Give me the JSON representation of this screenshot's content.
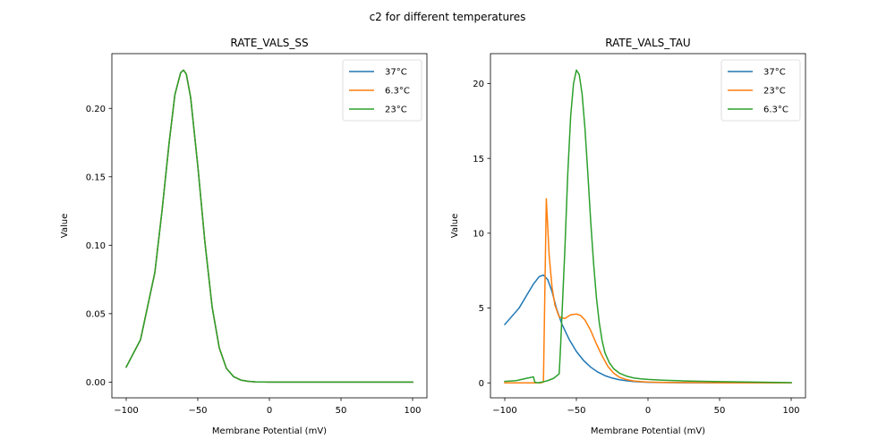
{
  "suptitle": "c2 for different temperatures",
  "chart_data": [
    {
      "type": "line",
      "title": "RATE_VALS_SS",
      "xlabel": "Membrane Potential (mV)",
      "ylabel": "Value",
      "xlim": [
        -110,
        110
      ],
      "ylim": [
        -0.0115,
        0.24
      ],
      "xticks": [
        -100,
        -50,
        0,
        50,
        100
      ],
      "xtick_labels": [
        "−100",
        "−50",
        "0",
        "50",
        "100"
      ],
      "yticks": [
        0.0,
        0.05,
        0.1,
        0.15,
        0.2
      ],
      "ytick_labels": [
        "0.00",
        "0.05",
        "0.10",
        "0.15",
        "0.20"
      ],
      "grid": false,
      "legend": {
        "placement": "top-right",
        "entries": [
          "37°C",
          "6.3°C",
          "23°C"
        ]
      },
      "series": [
        {
          "name": "37°C",
          "color": "#1f77b4",
          "x": [
            -100,
            -90,
            -80,
            -75,
            -70,
            -66,
            -62,
            -60,
            -58,
            -55,
            -50,
            -45,
            -40,
            -35,
            -30,
            -25,
            -20,
            -15,
            -10,
            -5,
            0,
            20,
            50,
            100
          ],
          "y": [
            0.011,
            0.031,
            0.08,
            0.125,
            0.175,
            0.21,
            0.226,
            0.228,
            0.225,
            0.208,
            0.158,
            0.102,
            0.055,
            0.025,
            0.01,
            0.004,
            0.0015,
            0.0006,
            0.0002,
            0.0001,
            0.0,
            0.0,
            0.0,
            0.0
          ]
        },
        {
          "name": "6.3°C",
          "color": "#ff7f0e",
          "x": [
            -100,
            -90,
            -80,
            -75,
            -70,
            -66,
            -62,
            -60,
            -58,
            -55,
            -50,
            -45,
            -40,
            -35,
            -30,
            -25,
            -20,
            -15,
            -10,
            -5,
            0,
            20,
            50,
            100
          ],
          "y": [
            0.011,
            0.031,
            0.08,
            0.125,
            0.175,
            0.21,
            0.226,
            0.228,
            0.225,
            0.208,
            0.158,
            0.102,
            0.055,
            0.025,
            0.01,
            0.004,
            0.0015,
            0.0006,
            0.0002,
            0.0001,
            0.0,
            0.0,
            0.0,
            0.0
          ]
        },
        {
          "name": "23°C",
          "color": "#2ca02c",
          "x": [
            -100,
            -90,
            -80,
            -75,
            -70,
            -66,
            -62,
            -60,
            -58,
            -55,
            -50,
            -45,
            -40,
            -35,
            -30,
            -25,
            -20,
            -15,
            -10,
            -5,
            0,
            20,
            50,
            100
          ],
          "y": [
            0.011,
            0.031,
            0.08,
            0.125,
            0.175,
            0.21,
            0.226,
            0.228,
            0.225,
            0.208,
            0.158,
            0.102,
            0.055,
            0.025,
            0.01,
            0.004,
            0.0015,
            0.0006,
            0.0002,
            0.0001,
            0.0,
            0.0,
            0.0,
            0.0
          ]
        }
      ]
    },
    {
      "type": "line",
      "title": "RATE_VALS_TAU",
      "xlabel": "Membrane Potential (mV)",
      "ylabel": "Value",
      "xlim": [
        -110,
        110
      ],
      "ylim": [
        -1.0,
        22.0
      ],
      "xticks": [
        -100,
        -50,
        0,
        50,
        100
      ],
      "xtick_labels": [
        "−100",
        "−50",
        "0",
        "50",
        "100"
      ],
      "yticks": [
        0,
        5,
        10,
        15,
        20
      ],
      "ytick_labels": [
        "0",
        "5",
        "10",
        "15",
        "20"
      ],
      "grid": false,
      "legend": {
        "placement": "top-right",
        "entries": [
          "37°C",
          "23°C",
          "6.3°C"
        ]
      },
      "series": [
        {
          "name": "37°C",
          "color": "#1f77b4",
          "x": [
            -100,
            -90,
            -85,
            -80,
            -76,
            -73,
            -70,
            -67,
            -64,
            -60,
            -55,
            -50,
            -45,
            -40,
            -35,
            -30,
            -25,
            -20,
            -15,
            -10,
            -5,
            0,
            10,
            25,
            50,
            100
          ],
          "y": [
            3.9,
            5.0,
            5.8,
            6.6,
            7.1,
            7.2,
            6.9,
            6.1,
            5.0,
            3.9,
            2.9,
            2.1,
            1.5,
            1.05,
            0.72,
            0.48,
            0.32,
            0.21,
            0.14,
            0.09,
            0.06,
            0.04,
            0.02,
            0.01,
            0.0,
            0.0
          ]
        },
        {
          "name": "23°C",
          "color": "#ff7f0e",
          "x": [
            -100,
            -90,
            -80,
            -75,
            -73,
            -71,
            -69,
            -67,
            -65,
            -62,
            -58,
            -54,
            -50,
            -47,
            -44,
            -40,
            -36,
            -32,
            -28,
            -24,
            -20,
            -15,
            -10,
            -5,
            0,
            10,
            25,
            50,
            100
          ],
          "y": [
            0.0,
            0.0,
            0.0,
            0.0,
            0.05,
            12.3,
            8.5,
            6.4,
            5.2,
            4.4,
            4.3,
            4.55,
            4.6,
            4.5,
            4.2,
            3.5,
            2.6,
            1.8,
            1.1,
            0.65,
            0.38,
            0.22,
            0.13,
            0.08,
            0.05,
            0.03,
            0.02,
            0.01,
            0.0
          ]
        },
        {
          "name": "6.3°C",
          "color": "#2ca02c",
          "x": [
            -100,
            -92,
            -85,
            -80,
            -79,
            -77,
            -74,
            -70,
            -66,
            -62,
            -61,
            -58,
            -56,
            -54,
            -52,
            -50,
            -48,
            -46,
            -44,
            -42,
            -40,
            -38,
            -36,
            -34,
            -32,
            -30,
            -27,
            -24,
            -20,
            -15,
            -10,
            -5,
            0,
            10,
            25,
            50,
            100
          ],
          "y": [
            0.1,
            0.15,
            0.3,
            0.4,
            0.05,
            0.0,
            0.05,
            0.15,
            0.3,
            0.6,
            2.5,
            9.0,
            14.0,
            17.8,
            20.0,
            20.9,
            20.6,
            19.3,
            17.0,
            14.0,
            10.8,
            8.0,
            5.7,
            4.0,
            2.8,
            2.0,
            1.35,
            0.95,
            0.65,
            0.45,
            0.33,
            0.27,
            0.23,
            0.18,
            0.13,
            0.08,
            0.02
          ]
        }
      ]
    }
  ]
}
